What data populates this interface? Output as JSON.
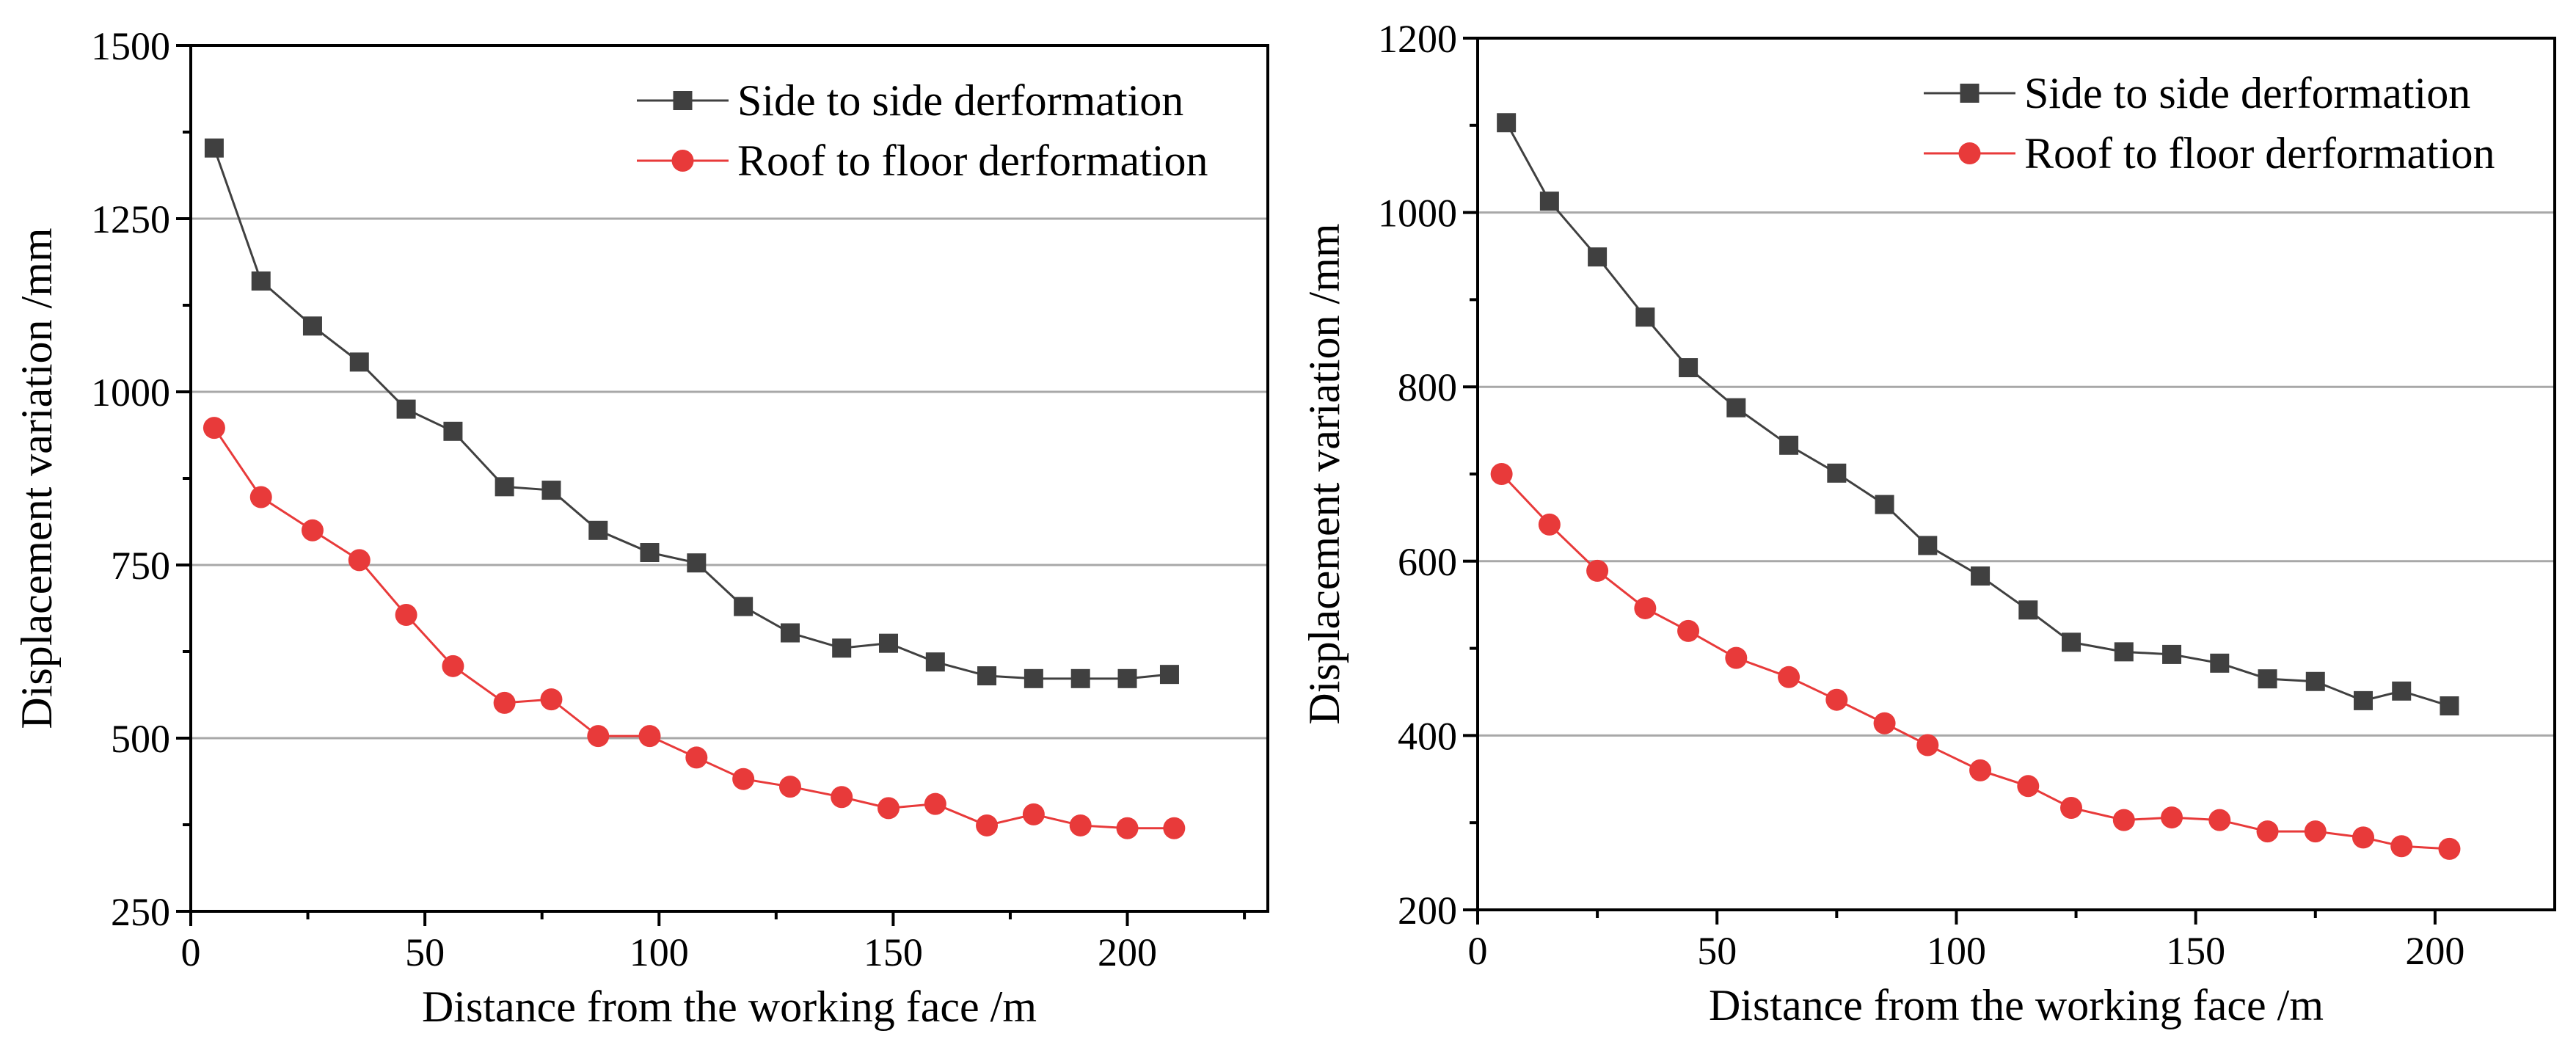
{
  "chart_data": [
    {
      "type": "line",
      "title": "",
      "xlabel": "Distance from the working face /m",
      "ylabel": "Displacement variation /mm",
      "xlim": [
        0,
        230
      ],
      "ylim": [
        250,
        1500
      ],
      "xticks": [
        0,
        50,
        100,
        150,
        200
      ],
      "yticks": [
        250,
        500,
        750,
        1000,
        1250,
        1500
      ],
      "grid": "horizontal",
      "legend_position": "top-right",
      "series": [
        {
          "name": "Side to side derformation",
          "color": "#404040",
          "marker": "square",
          "x": [
            5,
            15,
            26,
            36,
            46,
            56,
            67,
            77,
            87,
            98,
            108,
            118,
            128,
            139,
            149,
            159,
            170,
            180,
            190,
            200,
            209
          ],
          "y": [
            1352,
            1160,
            1095,
            1043,
            975,
            943,
            863,
            858,
            800,
            768,
            753,
            690,
            652,
            630,
            637,
            610,
            590,
            586,
            586,
            586,
            592
          ]
        },
        {
          "name": "Roof to floor derformation",
          "color": "#e83a3a",
          "marker": "circle",
          "x": [
            5,
            15,
            26,
            36,
            46,
            56,
            67,
            77,
            87,
            98,
            108,
            118,
            128,
            139,
            149,
            159,
            170,
            180,
            190,
            200,
            210
          ],
          "y": [
            948,
            848,
            800,
            757,
            678,
            604,
            551,
            556,
            503,
            503,
            472,
            441,
            430,
            415,
            399,
            405,
            374,
            390,
            374,
            370,
            370
          ]
        }
      ]
    },
    {
      "type": "line",
      "title": "",
      "xlabel": "Distance from the working face /m",
      "ylabel": "Displacement variation /mm",
      "xlim": [
        0,
        225
      ],
      "ylim": [
        200,
        1200
      ],
      "xticks": [
        0,
        50,
        100,
        150,
        200
      ],
      "yticks": [
        200,
        400,
        600,
        800,
        1000,
        1200
      ],
      "grid": "horizontal",
      "legend_position": "top-right",
      "series": [
        {
          "name": "Side to side derformation",
          "color": "#404040",
          "marker": "square",
          "x": [
            6,
            15,
            25,
            35,
            44,
            54,
            65,
            75,
            85,
            94,
            105,
            115,
            124,
            135,
            145,
            155,
            165,
            175,
            185,
            193,
            203
          ],
          "y": [
            1103,
            1013,
            949,
            880,
            822,
            776,
            733,
            701,
            665,
            618,
            583,
            544,
            507,
            496,
            493,
            483,
            465,
            462,
            440,
            451,
            434
          ]
        },
        {
          "name": "Roof to floor derformation",
          "color": "#e83a3a",
          "marker": "circle",
          "x": [
            5,
            15,
            25,
            35,
            44,
            54,
            65,
            75,
            85,
            94,
            105,
            115,
            124,
            135,
            145,
            155,
            165,
            175,
            185,
            193,
            203
          ],
          "y": [
            700,
            642,
            589,
            546,
            520,
            489,
            467,
            441,
            414,
            389,
            360,
            342,
            317,
            303,
            306,
            303,
            290,
            290,
            283,
            273,
            270
          ]
        }
      ]
    }
  ]
}
